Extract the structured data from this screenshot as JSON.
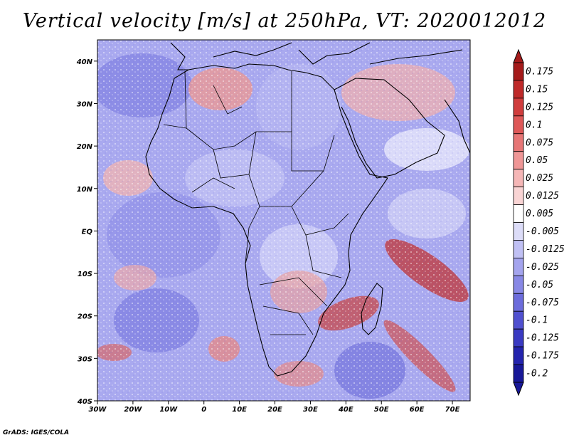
{
  "title": "Vertical velocity [m/s] at 250hPa, VT: 2020012012",
  "credit": "GrADS: IGES/COLA",
  "map": {
    "lat_labels": [
      "40N",
      "30N",
      "20N",
      "10N",
      "EQ",
      "10S",
      "20S",
      "30S",
      "40S"
    ],
    "lon_labels": [
      "30W",
      "20W",
      "10W",
      "0",
      "10E",
      "20E",
      "30E",
      "40E",
      "50E",
      "60E",
      "70E"
    ],
    "lat_range": [
      -40,
      45
    ],
    "lon_range": [
      -30,
      75
    ]
  },
  "colorbar": {
    "labels": [
      "0.175",
      "0.15",
      "0.125",
      "0.1",
      "0.075",
      "0.05",
      "0.025",
      "0.0125",
      "0.005",
      "-0.005",
      "-0.0125",
      "-0.025",
      "-0.05",
      "-0.075",
      "-0.1",
      "-0.125",
      "-0.175",
      "-0.2"
    ],
    "colors": [
      "#a51b1b",
      "#bf2a2a",
      "#d03d3d",
      "#de5858",
      "#e77676",
      "#ef9696",
      "#f5b6b6",
      "#f9d4d4",
      "#ffffff",
      "#dcdcf8",
      "#c0c0f4",
      "#a4a4ee",
      "#8888e6",
      "#6c6cdc",
      "#5050d0",
      "#3a3ac2",
      "#2424ae",
      "#181898"
    ]
  }
}
